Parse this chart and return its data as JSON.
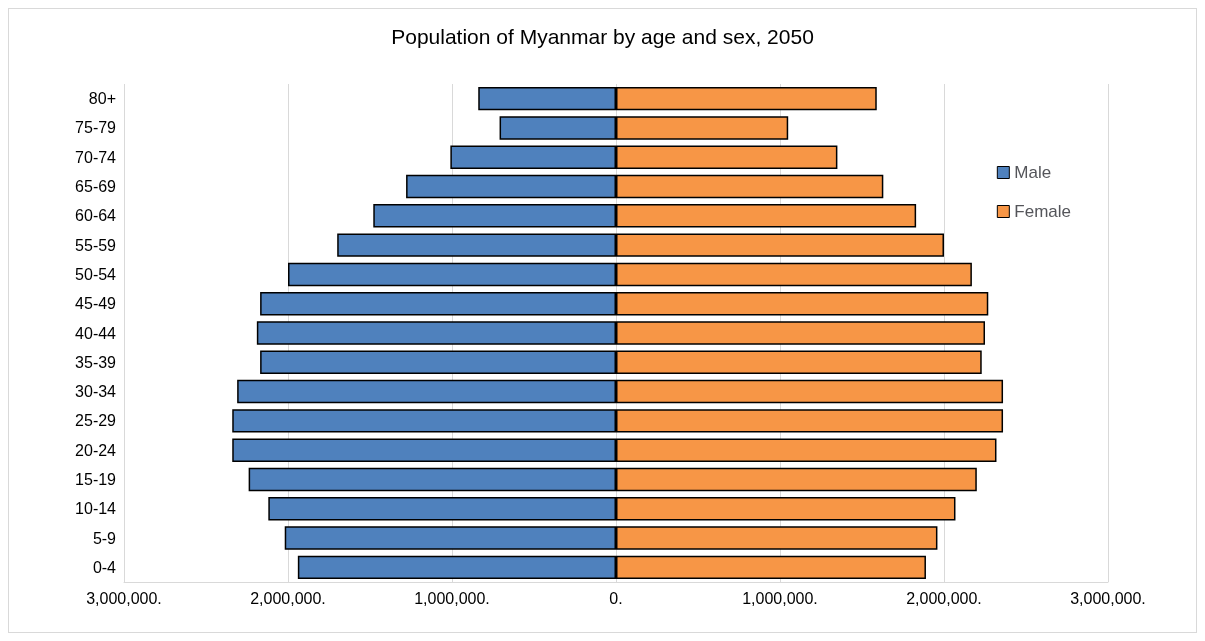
{
  "chart_data": {
    "type": "bar",
    "orientation": "horizontal",
    "title": "Population of Myanmar by age and sex, 2050",
    "categories": [
      "80+",
      "75-79",
      "70-74",
      "65-69",
      "60-64",
      "55-59",
      "50-54",
      "45-49",
      "40-44",
      "35-39",
      "30-34",
      "25-29",
      "20-24",
      "15-19",
      "10-14",
      "5-9",
      "0-4"
    ],
    "series": [
      {
        "name": "Male",
        "color": "#4f81bd",
        "values": [
          -840000,
          -710000,
          -1010000,
          -1280000,
          -1480000,
          -1700000,
          -2000000,
          -2170000,
          -2190000,
          -2170000,
          -2310000,
          -2340000,
          -2340000,
          -2240000,
          -2120000,
          -2020000,
          -1940000
        ]
      },
      {
        "name": "Female",
        "color": "#f79646",
        "values": [
          1590000,
          1050000,
          1350000,
          1630000,
          1830000,
          2000000,
          2170000,
          2270000,
          2250000,
          2230000,
          2360000,
          2360000,
          2320000,
          2200000,
          2070000,
          1960000,
          1890000
        ]
      }
    ],
    "xlim": [
      -3000000,
      3000000
    ],
    "xticks": [
      {
        "value": -3000000,
        "label": "3,000,000."
      },
      {
        "value": -2000000,
        "label": "2,000,000."
      },
      {
        "value": -1000000,
        "label": "1,000,000."
      },
      {
        "value": 0,
        "label": "0."
      },
      {
        "value": 1000000,
        "label": "1,000,000."
      },
      {
        "value": 2000000,
        "label": "2,000,000."
      },
      {
        "value": 3000000,
        "label": "3,000,000."
      }
    ],
    "grid": "x",
    "legend": "right",
    "stacked": true
  }
}
